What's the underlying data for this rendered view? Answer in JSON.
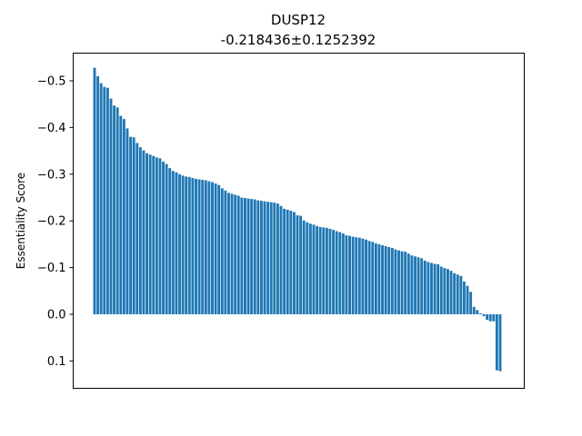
{
  "chart_data": {
    "type": "bar",
    "title": "DUSP12",
    "subtitle": "-0.218436±0.1252392",
    "xlabel": "",
    "ylabel": "Essentiality Score",
    "ylim": [
      0.155,
      -0.56
    ],
    "y_inverted": true,
    "yticks": [
      -0.5,
      -0.4,
      -0.3,
      -0.2,
      -0.1,
      0.0,
      0.1
    ],
    "ytick_labels": [
      "−0.5",
      "−0.4",
      "−0.3",
      "−0.2",
      "−0.1",
      "0.0",
      "0.1"
    ],
    "grid": false,
    "bar_color": "#1f77b4",
    "values": [
      -0.528,
      -0.51,
      -0.495,
      -0.487,
      -0.485,
      -0.462,
      -0.447,
      -0.443,
      -0.425,
      -0.418,
      -0.398,
      -0.38,
      -0.379,
      -0.367,
      -0.358,
      -0.351,
      -0.345,
      -0.342,
      -0.339,
      -0.336,
      -0.334,
      -0.327,
      -0.322,
      -0.313,
      -0.307,
      -0.304,
      -0.3,
      -0.297,
      -0.295,
      -0.294,
      -0.292,
      -0.29,
      -0.289,
      -0.288,
      -0.287,
      -0.285,
      -0.283,
      -0.28,
      -0.277,
      -0.27,
      -0.265,
      -0.26,
      -0.258,
      -0.256,
      -0.254,
      -0.25,
      -0.249,
      -0.248,
      -0.247,
      -0.246,
      -0.244,
      -0.243,
      -0.242,
      -0.241,
      -0.24,
      -0.239,
      -0.237,
      -0.232,
      -0.226,
      -0.224,
      -0.222,
      -0.219,
      -0.212,
      -0.211,
      -0.201,
      -0.197,
      -0.194,
      -0.192,
      -0.189,
      -0.187,
      -0.186,
      -0.185,
      -0.183,
      -0.181,
      -0.178,
      -0.176,
      -0.173,
      -0.169,
      -0.168,
      -0.166,
      -0.165,
      -0.164,
      -0.162,
      -0.16,
      -0.157,
      -0.155,
      -0.152,
      -0.15,
      -0.148,
      -0.146,
      -0.144,
      -0.142,
      -0.139,
      -0.137,
      -0.135,
      -0.134,
      -0.13,
      -0.126,
      -0.124,
      -0.122,
      -0.12,
      -0.115,
      -0.112,
      -0.11,
      -0.108,
      -0.107,
      -0.102,
      -0.099,
      -0.097,
      -0.093,
      -0.088,
      -0.085,
      -0.082,
      -0.07,
      -0.061,
      -0.048,
      -0.016,
      -0.009,
      -0.002,
      0.004,
      0.012,
      0.015,
      0.015,
      0.12,
      0.122
    ]
  }
}
